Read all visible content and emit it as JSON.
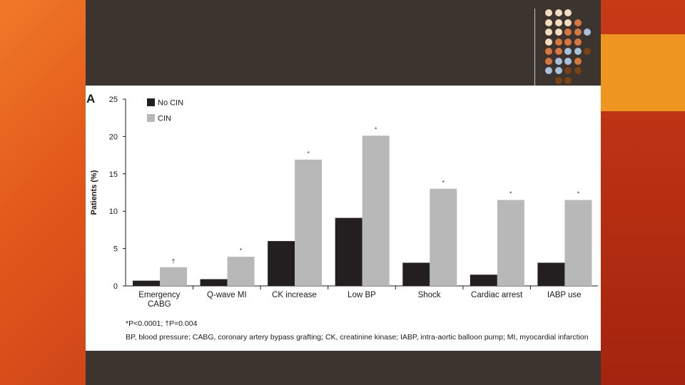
{
  "slide": {
    "colors": {
      "background": "#e2591b",
      "panel": "#3c342f",
      "accent_block": "#ef9620",
      "dot_peach": "#f3dcc0",
      "dot_orange": "#d9783e",
      "dot_blue": "#a7c1dd",
      "dot_brown": "#7a4214"
    },
    "dot_pattern": [
      [
        "peach",
        "peach",
        "peach"
      ],
      [
        "peach",
        "peach",
        "peach",
        "orange"
      ],
      [
        "peach",
        "peach",
        "orange",
        "orange",
        "blue"
      ],
      [
        "peach",
        "orange",
        "orange",
        "orange"
      ],
      [
        "orange",
        "orange",
        "blue",
        "blue",
        "brown"
      ],
      [
        "orange",
        "blue",
        "blue",
        "orange"
      ],
      [
        "blue",
        "blue",
        "brown",
        "brown"
      ],
      [
        "brown",
        "brown"
      ]
    ]
  },
  "figure": {
    "panel_label": "A",
    "footnote_line1": "*P<0.0001; †P=0.004",
    "footnote_line2": "BP, blood pressure; CABG, coronary artery bypass grafting; CK, creatinine kinase; IABP, intra-aortic balloon pump; MI, myocardial infarction"
  },
  "chart_data": {
    "type": "bar",
    "title": "",
    "xlabel": "",
    "ylabel": "Patients (%)",
    "ylim": [
      0,
      25
    ],
    "yticks": [
      0,
      5,
      10,
      15,
      20,
      25
    ],
    "categories": [
      [
        "Emergency",
        "CABG"
      ],
      [
        "Q-wave MI"
      ],
      [
        "CK increase"
      ],
      [
        "Low BP"
      ],
      [
        "Shock"
      ],
      [
        "Cardiac arrest"
      ],
      [
        "IABP use"
      ]
    ],
    "series": [
      {
        "name": "No CIN",
        "color": "#231f20",
        "values": [
          0.7,
          0.9,
          6.0,
          9.1,
          3.1,
          1.5,
          3.1
        ]
      },
      {
        "name": "CIN",
        "color": "#b8b8b8",
        "values": [
          2.5,
          3.9,
          16.9,
          20.1,
          13.0,
          11.5,
          11.5
        ]
      }
    ],
    "annotations": [
      "†",
      "*",
      "*",
      "*",
      "*",
      "*",
      "*"
    ],
    "legend_position": "top-left"
  }
}
